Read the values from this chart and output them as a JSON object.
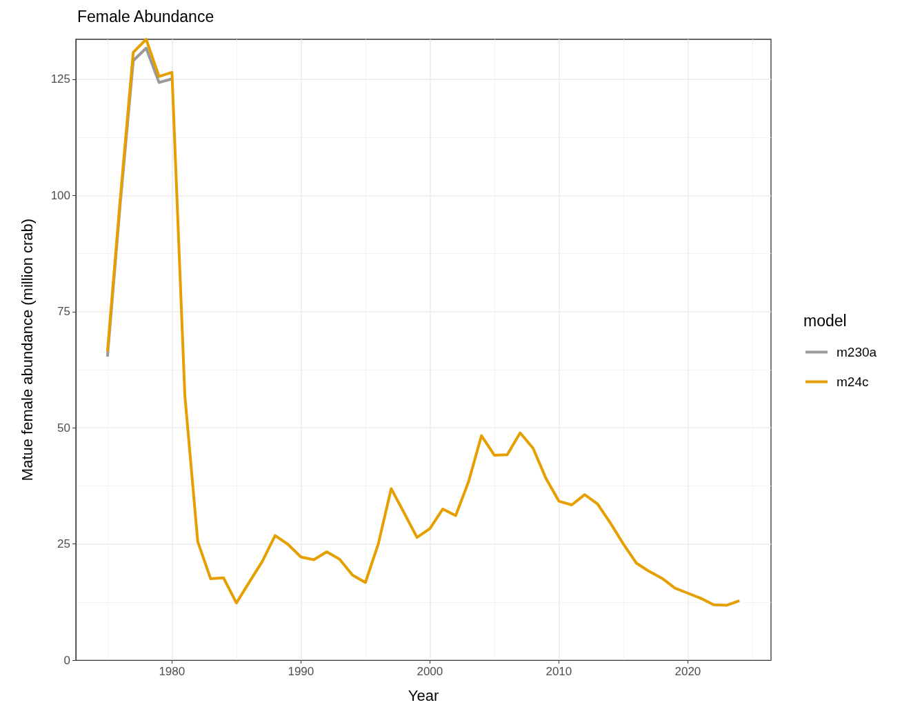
{
  "chart_data": {
    "type": "line",
    "title": "Female Abundance",
    "xlabel": "Year",
    "ylabel": "Matue female abundance (million crab)",
    "legend_title": "model",
    "x": [
      1975,
      1976,
      1977,
      1978,
      1979,
      1980,
      1981,
      1982,
      1983,
      1984,
      1985,
      1986,
      1987,
      1988,
      1989,
      1990,
      1991,
      1992,
      1993,
      1994,
      1995,
      1996,
      1997,
      1998,
      1999,
      2000,
      2001,
      2002,
      2003,
      2004,
      2005,
      2006,
      2007,
      2008,
      2009,
      2010,
      2011,
      2012,
      2013,
      2014,
      2015,
      2016,
      2017,
      2018,
      2019,
      2020,
      2021,
      2022,
      2023,
      2024
    ],
    "series": [
      {
        "name": "m230a",
        "color": "#999999",
        "values": [
          65.3,
          98.5,
          129.0,
          131.7,
          124.3,
          125.1,
          null,
          null,
          null,
          null,
          null,
          null,
          null,
          null,
          null,
          null,
          null,
          null,
          null,
          null,
          null,
          null,
          null,
          null,
          null,
          null,
          null,
          null,
          null,
          null,
          null,
          null,
          null,
          null,
          null,
          null,
          null,
          null,
          null,
          null,
          null,
          null,
          null,
          null,
          null,
          null,
          null,
          null,
          null,
          null
        ]
      },
      {
        "name": "m24c",
        "color": "#e69f00",
        "values": [
          66.4,
          99.5,
          130.8,
          133.6,
          125.6,
          126.5,
          57.0,
          25.5,
          17.5,
          17.7,
          12.3,
          16.8,
          21.2,
          26.8,
          24.9,
          22.2,
          21.6,
          23.3,
          21.7,
          18.3,
          16.7,
          25.0,
          36.9,
          31.7,
          26.4,
          28.3,
          32.5,
          31.1,
          38.4,
          48.3,
          44.1,
          44.2,
          48.9,
          45.6,
          39.1,
          34.2,
          33.4,
          35.6,
          33.6,
          29.5,
          25.0,
          20.9,
          19.1,
          17.6,
          15.5,
          14.4,
          13.3,
          11.9,
          11.8,
          12.8
        ]
      }
    ],
    "xlim": [
      1972.55,
      2026.45
    ],
    "xticks": [
      1980,
      1990,
      2000,
      2010,
      2020
    ],
    "ylim": [
      0,
      133.6
    ],
    "yticks": [
      0,
      25,
      50,
      75,
      100,
      125
    ],
    "grid": true,
    "legend": "right",
    "marker": "none",
    "line_style": "solid"
  }
}
